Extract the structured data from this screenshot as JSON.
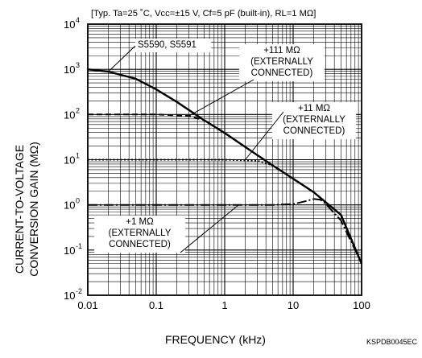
{
  "chart_data": {
    "type": "line",
    "title": "[Typ. Ta=25 ˚C, Vcc=±15 V, Cf=5 pF (built-in), RL=1 MΩ]",
    "xlabel": "FREQUENCY (kHz)",
    "ylabel_lines": [
      "CURRENT-TO-VOLTAGE",
      "CONVERSION GAIN (MΩ)"
    ],
    "xscale": "log",
    "yscale": "log",
    "xlim": [
      0.01,
      100
    ],
    "ylim": [
      0.01,
      10000
    ],
    "grid": true,
    "figure_code": "KSPDB0045EC",
    "x_ticks": [
      {
        "value": 0.01,
        "label": "0.01"
      },
      {
        "value": 0.1,
        "label": "0.1"
      },
      {
        "value": 1,
        "label": "1"
      },
      {
        "value": 10,
        "label": "10"
      },
      {
        "value": 100,
        "label": "100"
      }
    ],
    "y_ticks": [
      {
        "value": 10000,
        "base": "10",
        "exp": "4"
      },
      {
        "value": 1000,
        "base": "10",
        "exp": "3"
      },
      {
        "value": 100,
        "base": "10",
        "exp": "2"
      },
      {
        "value": 10,
        "base": "10",
        "exp": "1"
      },
      {
        "value": 1,
        "base": "10",
        "exp": "0"
      },
      {
        "value": 0.1,
        "base": "10",
        "exp": "-1"
      },
      {
        "value": 0.01,
        "base": "10",
        "exp": "-2"
      }
    ],
    "series": [
      {
        "name": "S5590, S5591",
        "style": "solid",
        "x": [
          0.01,
          0.02,
          0.05,
          0.1,
          0.2,
          0.5,
          1,
          2,
          5,
          10,
          20,
          50,
          100
        ],
        "y": [
          1000,
          890,
          620,
          360,
          190,
          75,
          39,
          19,
          7.5,
          3.8,
          1.9,
          0.6,
          0.05
        ]
      },
      {
        "name": "+111 MΩ (EXTERNALLY CONNECTED)",
        "style": "dashed",
        "x": [
          0.01,
          0.1,
          0.3,
          0.5,
          1,
          2,
          5,
          10,
          20,
          50,
          100
        ],
        "y": [
          100,
          100,
          93,
          75,
          39,
          19,
          7.5,
          3.8,
          1.9,
          0.6,
          0.05
        ]
      },
      {
        "name": "+11 MΩ (EXTERNALLY CONNECTED)",
        "style": "dotted",
        "x": [
          0.01,
          0.1,
          1,
          3,
          5,
          10,
          20,
          50,
          100
        ],
        "y": [
          10,
          10,
          10,
          9.5,
          7.5,
          3.8,
          1.9,
          0.6,
          0.05
        ]
      },
      {
        "name": "+1 MΩ (EXTERNALLY CONNECTED)",
        "style": "dash-dot",
        "x": [
          0.01,
          0.1,
          1,
          5,
          10,
          15,
          20,
          25,
          30,
          50,
          100
        ],
        "y": [
          1,
          1,
          1,
          1,
          1.04,
          1.2,
          1.35,
          1.3,
          1.05,
          0.45,
          0.05
        ]
      }
    ],
    "annotations": [
      {
        "lines": [
          "S5590, S5591"
        ],
        "target": {
          "x": 0.02,
          "y": 890
        }
      },
      {
        "lines": [
          "+111 MΩ",
          "(EXTERNALLY",
          "CONNECTED)"
        ],
        "target": {
          "x": 0.3,
          "y": 93
        }
      },
      {
        "lines": [
          "+11 MΩ",
          "(EXTERNALLY",
          "CONNECTED)"
        ],
        "target": {
          "x": 2,
          "y": 10
        }
      },
      {
        "lines": [
          "+1 MΩ",
          "(EXTERNALLY",
          "CONNECTED)"
        ],
        "target": {
          "x": 1.6,
          "y": 1
        }
      }
    ]
  }
}
